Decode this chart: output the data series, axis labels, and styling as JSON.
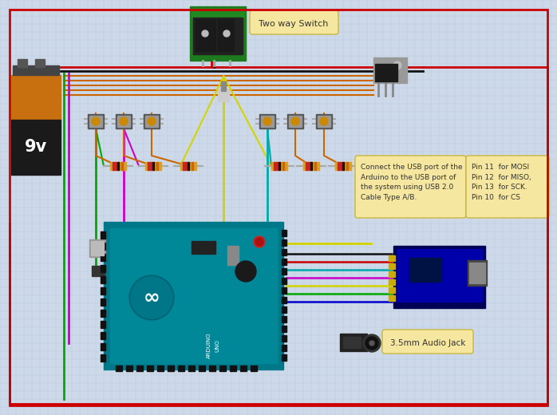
{
  "bg_color": "#cdd9e8",
  "grid_color": "#b8cce0",
  "border_color": "#cc0000",
  "annotations": {
    "two_way_switch": "Two way Switch",
    "usb_note": "Connect the USB port of the\nArduino to the USB port of\nthe system using USB 2.0\nCable Type A/B.",
    "pin_note": "Pin 11  for MOSI\nPin 12  for MISO,\nPin 13  for SCK.\nPin 10  for CS",
    "audio_jack": "3.5mm Audio Jack",
    "battery_label": "9v"
  },
  "note_bg": "#f5e6a0",
  "note_border": "#c8b840",
  "wire": {
    "red": "#cc0000",
    "black": "#111111",
    "orange": "#cc6600",
    "green": "#00aa00",
    "magenta": "#cc00cc",
    "yellow": "#d4d400",
    "cyan": "#00aaaa",
    "blue": "#0000cc",
    "gray": "#888888"
  }
}
